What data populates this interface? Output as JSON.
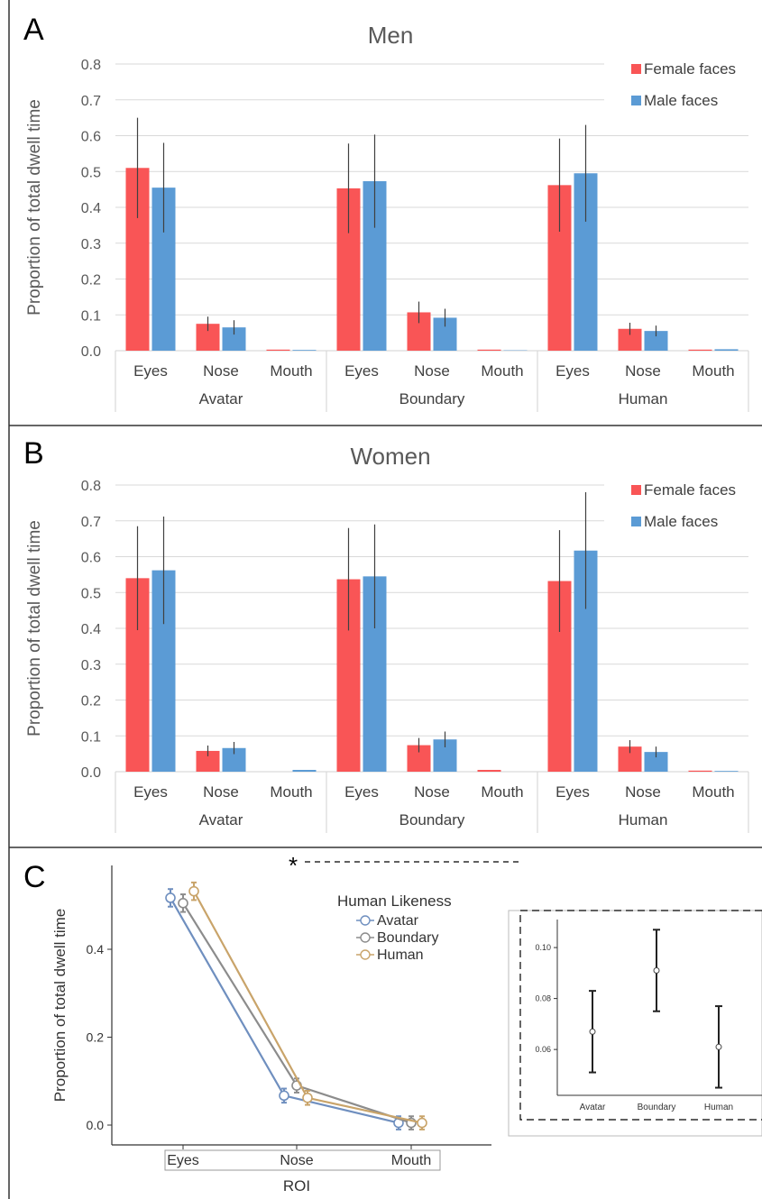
{
  "chart_data": [
    {
      "panel": "A",
      "type": "bar",
      "title": "Men",
      "ylabel": "Proportion of total dwell time",
      "ylim": [
        0,
        0.8
      ],
      "yticks": [
        "0.0",
        "0.1",
        "0.2",
        "0.3",
        "0.4",
        "0.5",
        "0.6",
        "0.7",
        "0.8"
      ],
      "categories": [
        "Eyes",
        "Nose",
        "Mouth",
        "Eyes",
        "Nose",
        "Mouth",
        "Eyes",
        "Nose",
        "Mouth"
      ],
      "groups": [
        "Avatar",
        "Boundary",
        "Human"
      ],
      "legend": "top-right",
      "grid": true,
      "series": [
        {
          "name": "Female faces",
          "color": "#F95556",
          "values": [
            0.51,
            0.075,
            0.003,
            0.453,
            0.107,
            0.003,
            0.462,
            0.061,
            0.003
          ],
          "err": [
            0.14,
            0.02,
            0,
            0.125,
            0.03,
            0,
            0.13,
            0.017,
            0
          ]
        },
        {
          "name": "Male faces",
          "color": "#5B9BD5",
          "values": [
            0.455,
            0.065,
            0.002,
            0.473,
            0.092,
            0.001,
            0.495,
            0.055,
            0.004
          ],
          "err": [
            0.125,
            0.02,
            0,
            0.13,
            0.025,
            0,
            0.135,
            0.015,
            0
          ]
        }
      ]
    },
    {
      "panel": "B",
      "type": "bar",
      "title": "Women",
      "ylabel": "Proportion of total dwell time",
      "ylim": [
        0,
        0.8
      ],
      "yticks": [
        "0.0",
        "0.1",
        "0.2",
        "0.3",
        "0.4",
        "0.5",
        "0.6",
        "0.7",
        "0.8"
      ],
      "categories": [
        "Eyes",
        "Nose",
        "Mouth",
        "Eyes",
        "Nose",
        "Mouth",
        "Eyes",
        "Nose",
        "Mouth"
      ],
      "groups": [
        "Avatar",
        "Boundary",
        "Human"
      ],
      "legend": "top-right",
      "grid": true,
      "series": [
        {
          "name": "Female faces",
          "color": "#F95556",
          "values": [
            0.54,
            0.058,
            0.0,
            0.537,
            0.074,
            0.005,
            0.532,
            0.07,
            0.003
          ],
          "err": [
            0.145,
            0.015,
            0,
            0.143,
            0.02,
            0,
            0.142,
            0.018,
            0
          ]
        },
        {
          "name": "Male faces",
          "color": "#5B9BD5",
          "values": [
            0.562,
            0.066,
            0.005,
            0.545,
            0.09,
            0.0,
            0.617,
            0.055,
            0.002
          ],
          "err": [
            0.15,
            0.017,
            0,
            0.145,
            0.022,
            0,
            0.163,
            0.015,
            0
          ]
        }
      ]
    },
    {
      "panel": "C",
      "type": "line",
      "xlabel": "ROI",
      "ylabel": "Proportion of total dwell time",
      "x": [
        "Eyes",
        "Nose",
        "Mouth"
      ],
      "yticks": [
        "0.0",
        "0.2",
        "0.4"
      ],
      "ylim": [
        -0.05,
        0.6
      ],
      "legend_title": "Human Likeness",
      "legend": "top-center",
      "series": [
        {
          "name": "Avatar",
          "color": "#6F8FBF",
          "values": [
            0.517,
            0.067,
            0.005
          ],
          "err": [
            0.02,
            0.016,
            0.015
          ]
        },
        {
          "name": "Boundary",
          "color": "#8C8C8C",
          "values": [
            0.505,
            0.09,
            0.005
          ],
          "err": [
            0.02,
            0.016,
            0.015
          ]
        },
        {
          "name": "Human",
          "color": "#C9A46A",
          "values": [
            0.532,
            0.062,
            0.005
          ],
          "err": [
            0.02,
            0.016,
            0.015
          ]
        }
      ],
      "annotation": "*",
      "inset": {
        "type": "errorbar",
        "categories": [
          "Avatar",
          "Boundary",
          "Human"
        ],
        "values": [
          0.067,
          0.091,
          0.061
        ],
        "lower": [
          0.051,
          0.075,
          0.045
        ],
        "upper": [
          0.083,
          0.107,
          0.077
        ],
        "yticks": [
          "0.06",
          "0.08",
          "0.10"
        ],
        "ylim": [
          0.042,
          0.111
        ]
      }
    }
  ],
  "panel_labels": [
    "A",
    "B",
    "C"
  ]
}
